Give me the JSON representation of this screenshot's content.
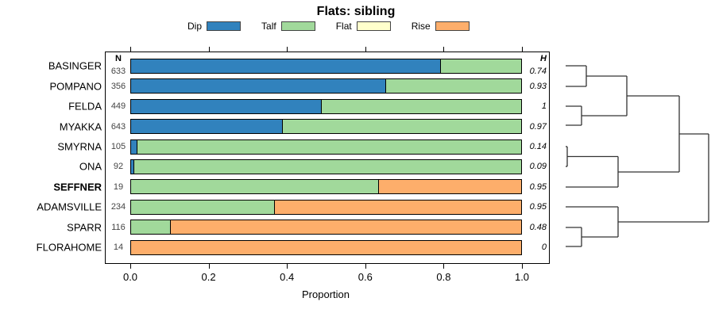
{
  "chart_data": {
    "type": "bar",
    "orientation": "horizontal-stacked",
    "title": "Flats: sibling",
    "xlabel": "Proportion",
    "xlim": [
      0,
      1
    ],
    "x_ticks": [
      "0.0",
      "0.2",
      "0.4",
      "0.6",
      "0.8",
      "1.0"
    ],
    "x_tick_values": [
      0,
      0.2,
      0.4,
      0.6,
      0.8,
      1.0
    ],
    "grid": false,
    "legend_position": "top",
    "legend": [
      {
        "label": "Dip",
        "color": "#3182BD"
      },
      {
        "label": "Talf",
        "color": "#A1D99B"
      },
      {
        "label": "Flat",
        "color": "#FFFFCC"
      },
      {
        "label": "Rise",
        "color": "#FDAE6B"
      }
    ],
    "columns": {
      "n_header": "N",
      "h_header": "H"
    },
    "rows": [
      {
        "site": "BASINGER",
        "bold": false,
        "n": "633",
        "h": "0.74",
        "segments": [
          {
            "cat": "Dip",
            "value": 0.795
          },
          {
            "cat": "Talf",
            "value": 0.205
          }
        ]
      },
      {
        "site": "POMPANO",
        "bold": false,
        "n": "356",
        "h": "0.93",
        "segments": [
          {
            "cat": "Dip",
            "value": 0.655
          },
          {
            "cat": "Talf",
            "value": 0.345
          }
        ]
      },
      {
        "site": "FELDA",
        "bold": false,
        "n": "449",
        "h": "1",
        "segments": [
          {
            "cat": "Dip",
            "value": 0.49
          },
          {
            "cat": "Talf",
            "value": 0.51
          }
        ]
      },
      {
        "site": "MYAKKA",
        "bold": false,
        "n": "643",
        "h": "0.97",
        "segments": [
          {
            "cat": "Dip",
            "value": 0.39
          },
          {
            "cat": "Talf",
            "value": 0.61
          }
        ]
      },
      {
        "site": "SMYRNA",
        "bold": false,
        "n": "105",
        "h": "0.14",
        "segments": [
          {
            "cat": "Dip",
            "value": 0.02
          },
          {
            "cat": "Talf",
            "value": 0.98
          }
        ]
      },
      {
        "site": "ONA",
        "bold": false,
        "n": "92",
        "h": "0.09",
        "segments": [
          {
            "cat": "Dip",
            "value": 0.012
          },
          {
            "cat": "Talf",
            "value": 0.988
          }
        ]
      },
      {
        "site": "SEFFNER",
        "bold": true,
        "n": "19",
        "h": "0.95",
        "segments": [
          {
            "cat": "Talf",
            "value": 0.635
          },
          {
            "cat": "Rise",
            "value": 0.365
          }
        ]
      },
      {
        "site": "ADAMSVILLE",
        "bold": false,
        "n": "234",
        "h": "0.95",
        "segments": [
          {
            "cat": "Talf",
            "value": 0.37
          },
          {
            "cat": "Rise",
            "value": 0.63
          }
        ]
      },
      {
        "site": "SPARR",
        "bold": false,
        "n": "116",
        "h": "0.48",
        "segments": [
          {
            "cat": "Talf",
            "value": 0.105
          },
          {
            "cat": "Rise",
            "value": 0.895
          }
        ]
      },
      {
        "site": "FLORAHOME",
        "bold": false,
        "n": "14",
        "h": "0",
        "segments": [
          {
            "cat": "Rise",
            "value": 1.0
          }
        ]
      }
    ],
    "dendrogram": {
      "line_color": "#333333",
      "segments": [
        [
          712,
          83,
          738,
          83
        ],
        [
          712,
          109,
          738,
          109
        ],
        [
          738,
          83,
          738,
          109
        ],
        [
          738,
          96,
          789,
          96
        ],
        [
          712,
          134,
          732,
          134
        ],
        [
          712,
          158,
          732,
          158
        ],
        [
          732,
          134,
          732,
          158
        ],
        [
          732,
          146,
          789,
          146
        ],
        [
          789,
          96,
          789,
          146
        ],
        [
          789,
          121,
          855,
          121
        ],
        [
          712,
          185,
          714,
          185
        ],
        [
          712,
          210,
          714,
          210
        ],
        [
          714,
          185,
          714,
          210
        ],
        [
          714,
          197.5,
          778,
          197.5
        ],
        [
          712,
          236,
          778,
          236
        ],
        [
          778,
          197.5,
          778,
          236
        ],
        [
          778,
          217,
          855,
          217
        ],
        [
          855,
          121,
          855,
          217
        ],
        [
          855,
          169,
          892,
          169
        ],
        [
          712,
          261,
          778,
          261
        ],
        [
          712,
          287,
          732,
          287
        ],
        [
          712,
          311,
          732,
          311
        ],
        [
          732,
          287,
          732,
          311
        ],
        [
          732,
          299,
          778,
          299
        ],
        [
          778,
          261,
          778,
          299
        ],
        [
          778,
          280,
          892,
          280
        ],
        [
          892,
          169,
          892,
          280
        ]
      ]
    }
  }
}
